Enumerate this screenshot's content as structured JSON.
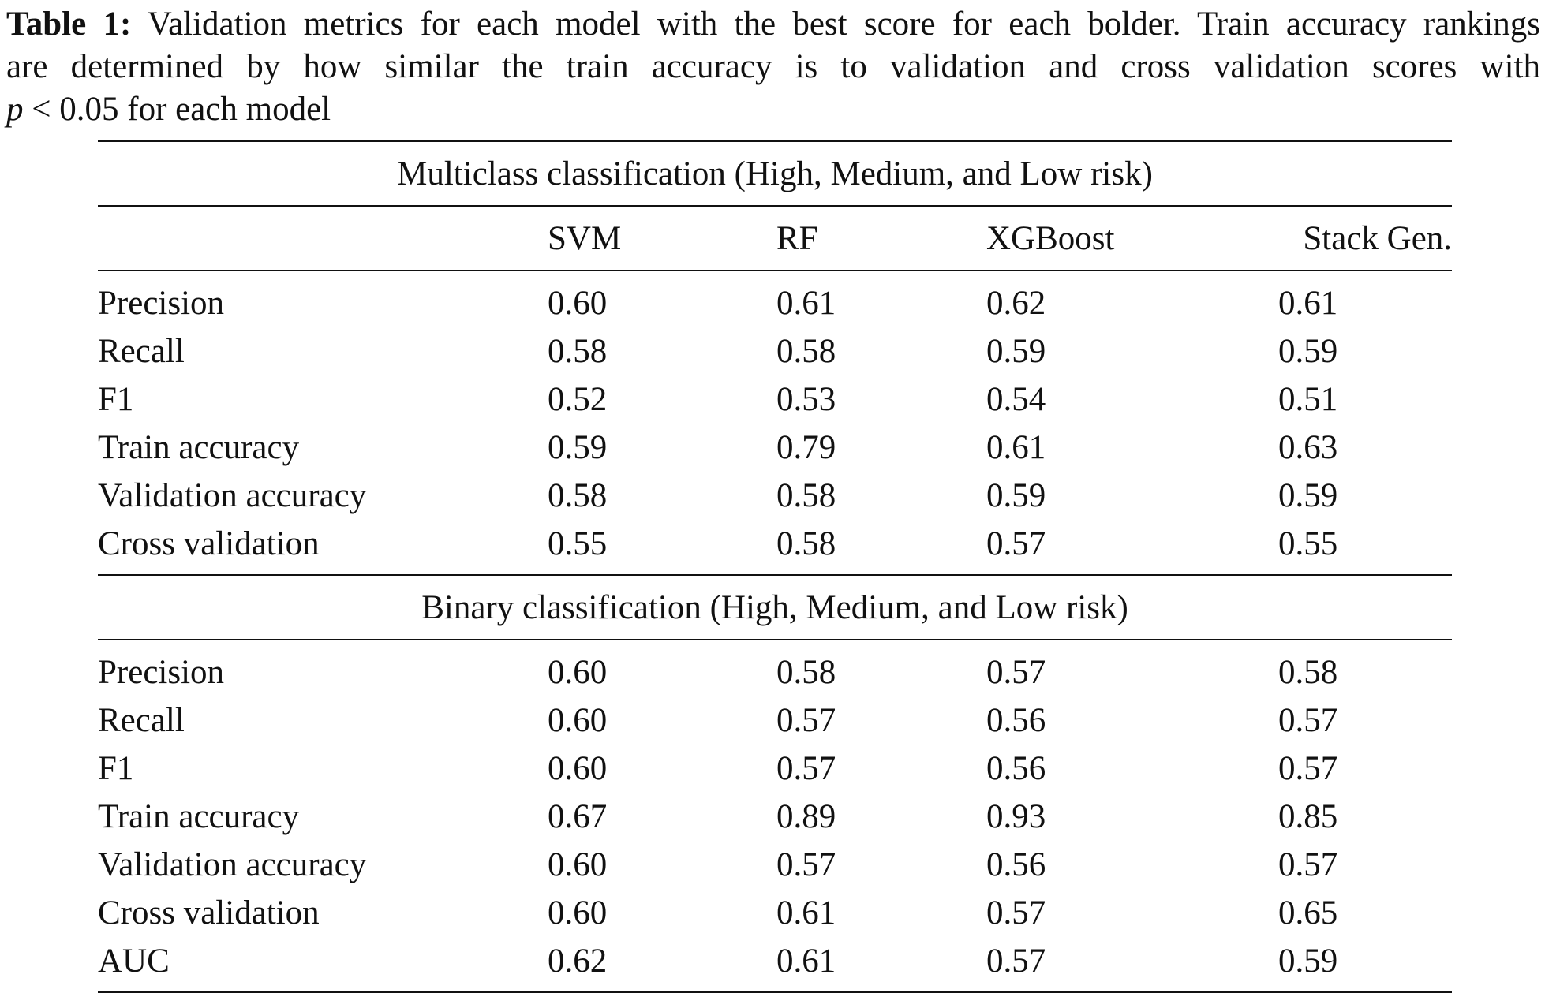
{
  "caption": {
    "label": "Table 1:",
    "line1": "Validation metrics for each model with the best score for each bolder. Train accuracy rankings",
    "line2": "are determined by how similar the train accuracy is to validation and cross validation scores with",
    "p_var": "p",
    "line3_rest": " < 0.05 for each model"
  },
  "table": {
    "columns": [
      "SVM",
      "RF",
      "XGBoost",
      "Stack Gen."
    ],
    "multiclass": {
      "title": "Multiclass classification (High, Medium, and Low risk)",
      "rows": [
        {
          "metric": "Precision",
          "values": [
            "0.60",
            "0.61",
            "0.62",
            "0.61"
          ]
        },
        {
          "metric": "Recall",
          "values": [
            "0.58",
            "0.58",
            "0.59",
            "0.59"
          ]
        },
        {
          "metric": "F1",
          "values": [
            "0.52",
            "0.53",
            "0.54",
            "0.51"
          ]
        },
        {
          "metric": "Train accuracy",
          "values": [
            "0.59",
            "0.79",
            "0.61",
            "0.63"
          ]
        },
        {
          "metric": "Validation accuracy",
          "values": [
            "0.58",
            "0.58",
            "0.59",
            "0.59"
          ]
        },
        {
          "metric": "Cross validation",
          "values": [
            "0.55",
            "0.58",
            "0.57",
            "0.55"
          ]
        }
      ]
    },
    "binary": {
      "title": "Binary classification (High, Medium, and Low risk)",
      "rows": [
        {
          "metric": "Precision",
          "values": [
            "0.60",
            "0.58",
            "0.57",
            "0.58"
          ]
        },
        {
          "metric": "Recall",
          "values": [
            "0.60",
            "0.57",
            "0.56",
            "0.57"
          ]
        },
        {
          "metric": "F1",
          "values": [
            "0.60",
            "0.57",
            "0.56",
            "0.57"
          ]
        },
        {
          "metric": "Train accuracy",
          "values": [
            "0.67",
            "0.89",
            "0.93",
            "0.85"
          ]
        },
        {
          "metric": "Validation accuracy",
          "values": [
            "0.60",
            "0.57",
            "0.56",
            "0.57"
          ]
        },
        {
          "metric": "Cross validation",
          "values": [
            "0.60",
            "0.61",
            "0.57",
            "0.65"
          ]
        },
        {
          "metric": "AUC",
          "values": [
            "0.62",
            "0.61",
            "0.57",
            "0.59"
          ]
        }
      ]
    }
  }
}
